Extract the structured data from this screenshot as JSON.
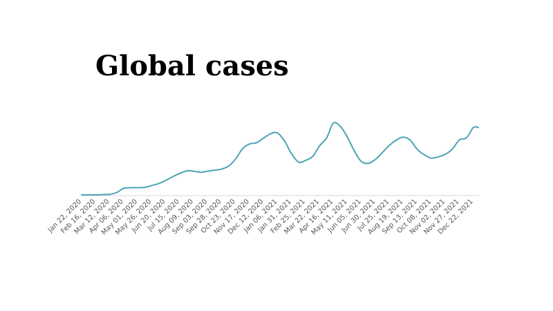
{
  "chart_data": {
    "type": "line",
    "title": "Global cases",
    "xlabel": "",
    "ylabel": "",
    "grid": false,
    "legend": "none",
    "y_axis_labels_shown": false,
    "colors": {
      "line": "#4aa3b5",
      "baseline": "#d9d9d9",
      "tick_label": "#555555",
      "title": "#000000"
    },
    "tick_labels": [
      "Jan 22, 2020",
      "Feb 16, 2020",
      "Mar 12, 2020",
      "Apr 06, 2020",
      "May 01, 2020",
      "May 26, 2020",
      "Jun 20, 2020",
      "Jul 15, 2020",
      "Aug 09, 2020",
      "Sep 03, 2020",
      "Sep 28, 2020",
      "Oct 23, 2020",
      "Nov 17, 2020",
      "Dec 12, 2020",
      "Jan 06, 2021",
      "Jan 31, 2021",
      "Feb 25, 2021",
      "Mar 22, 2021",
      "Apr 16, 2021",
      "May 11, 2021",
      "Jun 05, 2021",
      "Jun 30, 2021",
      "Jul 25, 2021",
      "Aug 19, 2021",
      "Sep 13, 2021",
      "Oct 08, 2021",
      "Nov 02, 2021",
      "Nov 27, 2021",
      "Dec 22, 2021"
    ],
    "x": [
      "Jan 22, 2020",
      "Feb 01, 2020",
      "Feb 16, 2020",
      "Mar 01, 2020",
      "Mar 12, 2020",
      "Mar 25, 2020",
      "Apr 06, 2020",
      "Apr 20, 2020",
      "May 01, 2020",
      "May 14, 2020",
      "May 26, 2020",
      "Jun 08, 2020",
      "Jun 20, 2020",
      "Jul 03, 2020",
      "Jul 15, 2020",
      "Jul 28, 2020",
      "Aug 09, 2020",
      "Aug 22, 2020",
      "Sep 03, 2020",
      "Sep 16, 2020",
      "Sep 28, 2020",
      "Oct 11, 2020",
      "Oct 23, 2020",
      "Nov 05, 2020",
      "Nov 17, 2020",
      "Nov 30, 2020",
      "Dec 12, 2020",
      "Dec 25, 2020",
      "Jan 06, 2021",
      "Jan 19, 2021",
      "Jan 31, 2021",
      "Feb 13, 2021",
      "Feb 25, 2021",
      "Mar 10, 2021",
      "Mar 22, 2021",
      "Apr 04, 2021",
      "Apr 16, 2021",
      "Apr 29, 2021",
      "May 11, 2021",
      "May 24, 2021",
      "Jun 05, 2021",
      "Jun 18, 2021",
      "Jun 30, 2021",
      "Jul 13, 2021",
      "Jul 25, 2021",
      "Aug 07, 2021",
      "Aug 19, 2021",
      "Sep 01, 2021",
      "Sep 13, 2021",
      "Sep 26, 2021",
      "Oct 08, 2021",
      "Oct 21, 2021",
      "Nov 02, 2021",
      "Nov 15, 2021",
      "Nov 27, 2021",
      "Dec 10, 2021",
      "Dec 22, 2021",
      "Dec 31, 2021"
    ],
    "series": [
      {
        "values": [
          0.0,
          0.0,
          0.0,
          0.5,
          0.8,
          3.5,
          9.5,
          10.5,
          10.5,
          11.0,
          13.5,
          16.5,
          21.0,
          26.5,
          31.0,
          35.0,
          34.5,
          33.0,
          34.5,
          36.0,
          37.5,
          42.0,
          52.0,
          67.5,
          74.0,
          76.0,
          82.5,
          89.0,
          90.0,
          78.0,
          60.0,
          47.5,
          50.0,
          56.0,
          71.0,
          83.0,
          104.5,
          99.0,
          84.0,
          63.0,
          48.5,
          46.0,
          51.5,
          62.0,
          72.0,
          80.0,
          84.0,
          79.0,
          66.0,
          58.0,
          53.5,
          55.5,
          59.0,
          67.0,
          80.0,
          83.0,
          98.0,
          98.0
        ]
      }
    ]
  }
}
